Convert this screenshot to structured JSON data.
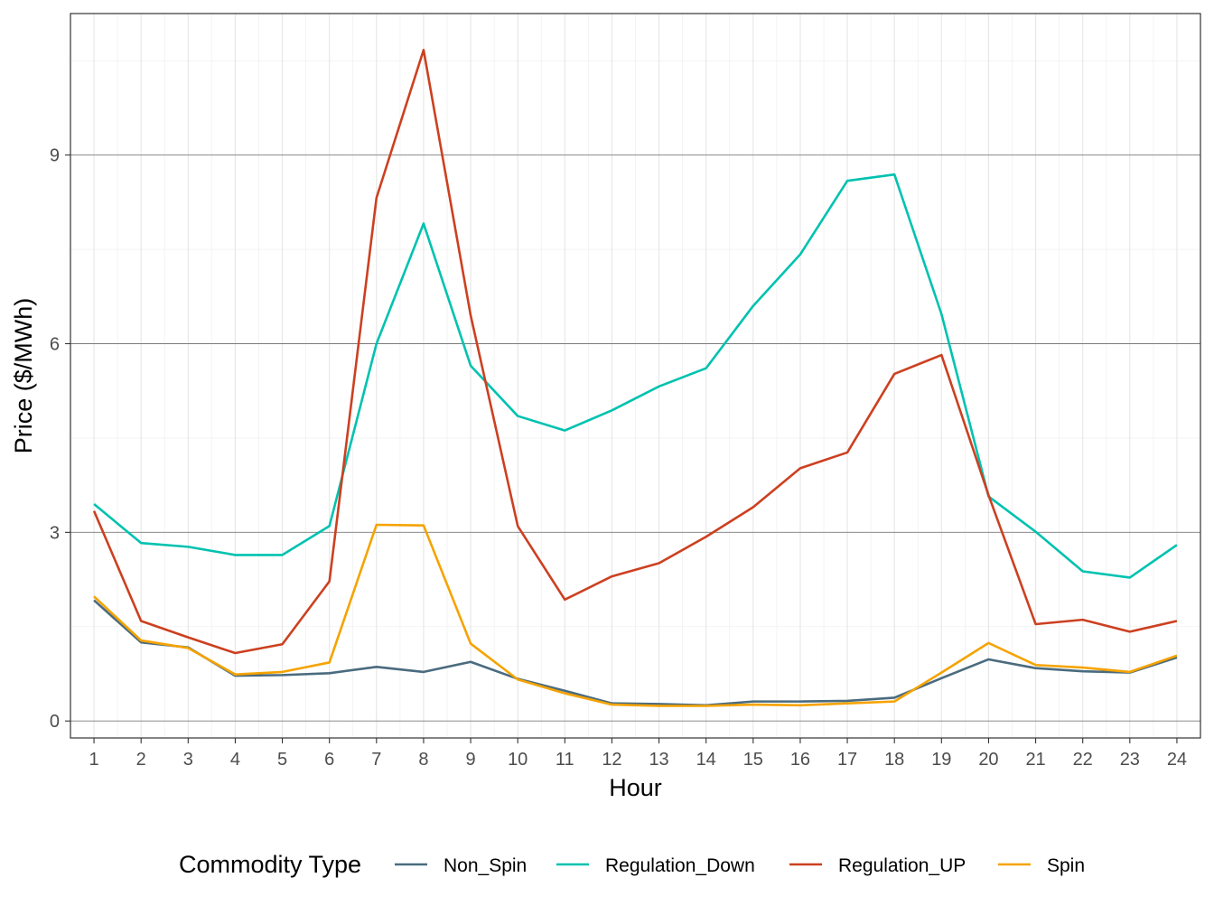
{
  "chart_data": {
    "type": "line",
    "title": "",
    "xlabel": "Hour",
    "ylabel": "Price ($/MWh)",
    "x": [
      1,
      2,
      3,
      4,
      5,
      6,
      7,
      8,
      9,
      10,
      11,
      12,
      13,
      14,
      15,
      16,
      17,
      18,
      19,
      20,
      21,
      22,
      23,
      24
    ],
    "xticks": [
      "1",
      "2",
      "3",
      "4",
      "5",
      "6",
      "7",
      "8",
      "9",
      "10",
      "11",
      "12",
      "13",
      "14",
      "15",
      "16",
      "17",
      "18",
      "19",
      "20",
      "21",
      "22",
      "23",
      "24"
    ],
    "xlim": [
      0.5,
      24.5
    ],
    "ylim": [
      -0.27,
      11.25
    ],
    "yticks": [
      "0",
      "3",
      "6",
      "9"
    ],
    "ytick_values": [
      0,
      3,
      6,
      9
    ],
    "grid": true,
    "legend_position": "bottom",
    "legend_title": "Commodity Type",
    "series": [
      {
        "name": "Non_Spin",
        "color": "#4a6b7f",
        "values": [
          1.92,
          1.25,
          1.17,
          0.72,
          0.73,
          0.76,
          0.86,
          0.78,
          0.94,
          0.67,
          0.48,
          0.28,
          0.27,
          0.25,
          0.31,
          0.31,
          0.32,
          0.37,
          0.68,
          0.98,
          0.84,
          0.79,
          0.77,
          1.01
        ]
      },
      {
        "name": "Regulation_Down",
        "color": "#00c2b0",
        "values": [
          3.45,
          2.83,
          2.77,
          2.64,
          2.64,
          3.1,
          6.0,
          7.91,
          5.65,
          4.85,
          4.62,
          4.94,
          5.32,
          5.61,
          6.6,
          7.42,
          8.59,
          8.69,
          6.47,
          3.57,
          3.01,
          2.38,
          2.28,
          2.8
        ]
      },
      {
        "name": "Regulation_UP",
        "color": "#cc4020",
        "values": [
          3.34,
          1.59,
          1.33,
          1.08,
          1.22,
          2.22,
          8.32,
          10.67,
          6.45,
          3.1,
          1.93,
          2.3,
          2.51,
          2.93,
          3.4,
          4.02,
          4.27,
          5.52,
          5.82,
          3.59,
          1.54,
          1.61,
          1.42,
          1.59
        ]
      },
      {
        "name": "Spin",
        "color": "#f5a300",
        "values": [
          1.98,
          1.28,
          1.16,
          0.74,
          0.78,
          0.93,
          3.12,
          3.11,
          1.23,
          0.66,
          0.44,
          0.26,
          0.24,
          0.24,
          0.26,
          0.25,
          0.28,
          0.31,
          0.77,
          1.24,
          0.89,
          0.85,
          0.78,
          1.04
        ]
      }
    ]
  }
}
